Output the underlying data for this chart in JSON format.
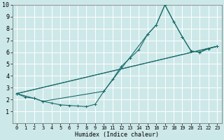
{
  "xlabel": "Humidex (Indice chaleur)",
  "bg_color": "#cde8e8",
  "grid_color": "#ffffff",
  "line_color": "#1a6b6b",
  "xlim": [
    -0.5,
    23.5
  ],
  "ylim": [
    0,
    10
  ],
  "xticks": [
    0,
    1,
    2,
    3,
    4,
    5,
    6,
    7,
    8,
    9,
    10,
    11,
    12,
    13,
    14,
    15,
    16,
    17,
    18,
    19,
    20,
    21,
    22,
    23
  ],
  "yticks": [
    1,
    2,
    3,
    4,
    5,
    6,
    7,
    8,
    9,
    10
  ],
  "line1_x": [
    0,
    1,
    2,
    3,
    4,
    5,
    6,
    7,
    8,
    9,
    10,
    11,
    12,
    13,
    14,
    15,
    16,
    17,
    18,
    19,
    20,
    21,
    22,
    23
  ],
  "line1_y": [
    2.5,
    2.2,
    2.1,
    1.85,
    1.7,
    1.55,
    1.5,
    1.45,
    1.4,
    1.6,
    2.7,
    3.7,
    4.8,
    5.5,
    6.2,
    7.5,
    8.3,
    10.0,
    8.6,
    7.3,
    6.1,
    6.0,
    6.3,
    6.5
  ],
  "line2_x": [
    0,
    2,
    3,
    10,
    15,
    16,
    17,
    18,
    19,
    20,
    21,
    22,
    23
  ],
  "line2_y": [
    2.5,
    2.1,
    1.85,
    2.7,
    7.5,
    8.3,
    10.0,
    8.6,
    7.3,
    6.1,
    6.0,
    6.3,
    6.5
  ],
  "line3_x": [
    0,
    23
  ],
  "line3_y": [
    2.5,
    6.5
  ],
  "line4_x": [
    0,
    23
  ],
  "line4_y": [
    2.5,
    6.5
  ]
}
